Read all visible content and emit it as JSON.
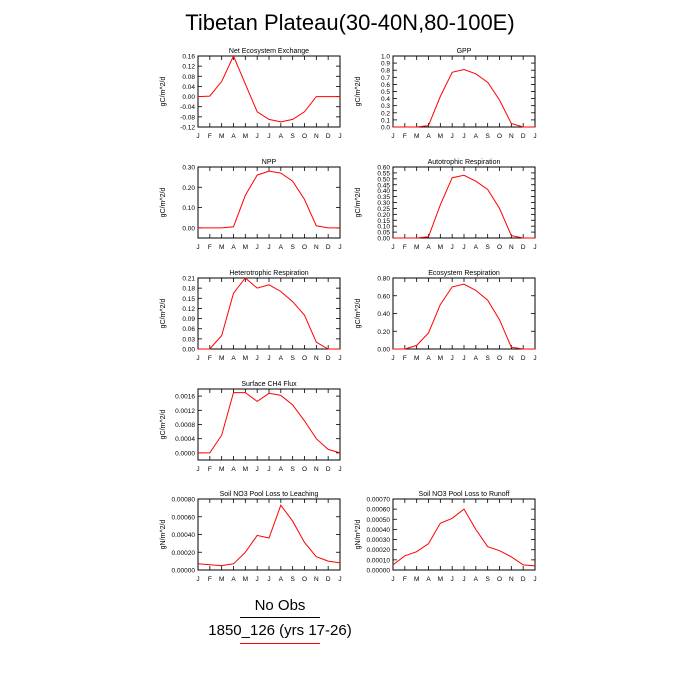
{
  "title": "Tibetan Plateau(30-40N,80-100E)",
  "legend": {
    "obs_label": "No Obs",
    "model_label": "1850_126 (yrs 17-26)",
    "model_color": "#ff0000",
    "obs_color": "#000000"
  },
  "chart_data": [
    {
      "type": "line",
      "title": "Net Ecosystem Exchange",
      "ylabel": "gC/m^2/d",
      "categories": [
        "J",
        "F",
        "M",
        "A",
        "M",
        "J",
        "J",
        "A",
        "S",
        "O",
        "N",
        "D",
        "J"
      ],
      "ylim": [
        -0.12,
        0.16
      ],
      "yticks": [
        "-0.12",
        "-0.08",
        "-0.04",
        "0.00",
        "0.04",
        "0.08",
        "0.12",
        "0.16"
      ],
      "series": [
        {
          "values": [
            0.0,
            0.002,
            0.06,
            0.16,
            0.05,
            -0.06,
            -0.09,
            -0.1,
            -0.09,
            -0.06,
            0.0,
            0.0,
            0.0
          ]
        }
      ]
    },
    {
      "type": "line",
      "title": "GPP",
      "ylabel": "gC/m^2/d",
      "categories": [
        "J",
        "F",
        "M",
        "A",
        "M",
        "J",
        "J",
        "A",
        "S",
        "O",
        "N",
        "D",
        "J"
      ],
      "ylim": [
        0,
        1.0
      ],
      "yticks": [
        "0.0",
        "0.1",
        "0.2",
        "0.3",
        "0.4",
        "0.5",
        "0.6",
        "0.7",
        "0.8",
        "0.9",
        "1.0"
      ],
      "series": [
        {
          "values": [
            0.0,
            0.0,
            0.0,
            0.02,
            0.43,
            0.77,
            0.81,
            0.75,
            0.63,
            0.38,
            0.05,
            0.0,
            0.0
          ]
        }
      ]
    },
    {
      "type": "line",
      "title": "NPP",
      "ylabel": "gC/m^2/d",
      "categories": [
        "J",
        "F",
        "M",
        "A",
        "M",
        "J",
        "J",
        "A",
        "S",
        "O",
        "N",
        "D",
        "J"
      ],
      "ylim": [
        -0.05,
        0.3
      ],
      "yticks": [
        "0.00",
        "0.10",
        "0.20",
        "0.30"
      ],
      "series": [
        {
          "values": [
            0.0,
            0.0,
            0.0,
            0.005,
            0.16,
            0.26,
            0.28,
            0.27,
            0.23,
            0.14,
            0.01,
            0.0,
            0.0
          ]
        }
      ]
    },
    {
      "type": "line",
      "title": "Autotrophic Respiration",
      "ylabel": "gC/m^2/d",
      "categories": [
        "J",
        "F",
        "M",
        "A",
        "M",
        "J",
        "J",
        "A",
        "S",
        "O",
        "N",
        "D",
        "J"
      ],
      "ylim": [
        0,
        0.6
      ],
      "yticks": [
        "0.00",
        "0.05",
        "0.10",
        "0.15",
        "0.20",
        "0.25",
        "0.30",
        "0.35",
        "0.40",
        "0.45",
        "0.50",
        "0.55",
        "0.60"
      ],
      "series": [
        {
          "values": [
            0.0,
            0.0,
            0.0,
            0.01,
            0.28,
            0.51,
            0.53,
            0.48,
            0.41,
            0.25,
            0.02,
            0.0,
            0.0
          ]
        }
      ]
    },
    {
      "type": "line",
      "title": "Heterotrophic Respiration",
      "ylabel": "gC/m^2/d",
      "categories": [
        "J",
        "F",
        "M",
        "A",
        "M",
        "J",
        "J",
        "A",
        "S",
        "O",
        "N",
        "D",
        "J"
      ],
      "ylim": [
        0,
        0.21
      ],
      "yticks": [
        "0.00",
        "0.03",
        "0.06",
        "0.09",
        "0.12",
        "0.15",
        "0.18",
        "0.21"
      ],
      "series": [
        {
          "values": [
            0.0,
            0.0,
            0.04,
            0.165,
            0.21,
            0.18,
            0.19,
            0.17,
            0.14,
            0.1,
            0.02,
            0.0,
            0.0
          ]
        }
      ]
    },
    {
      "type": "line",
      "title": "Ecosystem Respiration",
      "ylabel": "gC/m^2/d",
      "categories": [
        "J",
        "F",
        "M",
        "A",
        "M",
        "J",
        "J",
        "A",
        "S",
        "O",
        "N",
        "D",
        "J"
      ],
      "ylim": [
        0,
        0.8
      ],
      "yticks": [
        "0.00",
        "0.20",
        "0.40",
        "0.60",
        "0.80"
      ],
      "series": [
        {
          "values": [
            0.0,
            0.0,
            0.04,
            0.18,
            0.5,
            0.7,
            0.73,
            0.66,
            0.55,
            0.33,
            0.02,
            0.0,
            0.0
          ]
        }
      ]
    },
    {
      "type": "line",
      "title": "Surface CH4 Flux",
      "ylabel": "gC/m^2/d",
      "categories": [
        "J",
        "F",
        "M",
        "A",
        "M",
        "J",
        "J",
        "A",
        "S",
        "O",
        "N",
        "D",
        "J"
      ],
      "ylim": [
        -0.0002,
        0.0018
      ],
      "yticks": [
        "0.0000",
        "0.0004",
        "0.0008",
        "0.0012",
        "0.0016"
      ],
      "series": [
        {
          "values": [
            0.0,
            0.0,
            0.0005,
            0.0017,
            0.0017,
            0.00145,
            0.00168,
            0.00162,
            0.00135,
            0.0009,
            0.0004,
            0.0001,
            0.0
          ]
        }
      ]
    },
    {
      "type": "line",
      "title": "Soil NO3 Pool Loss to Leaching",
      "ylabel": "gN/m^2/d",
      "categories": [
        "J",
        "F",
        "M",
        "A",
        "M",
        "J",
        "J",
        "A",
        "S",
        "O",
        "N",
        "D",
        "J"
      ],
      "ylim": [
        0,
        0.0008
      ],
      "yticks": [
        "0.00000",
        "0.00020",
        "0.00040",
        "0.00060",
        "0.00080"
      ],
      "series": [
        {
          "values": [
            7e-05,
            6e-05,
            5e-05,
            7e-05,
            0.0002,
            0.00039,
            0.00036,
            0.00073,
            0.00055,
            0.00031,
            0.00015,
            0.0001,
            8e-05
          ]
        }
      ]
    },
    {
      "type": "line",
      "title": "Soil NO3 Pool Loss to Runoff",
      "ylabel": "gN/m^2/d",
      "categories": [
        "J",
        "F",
        "M",
        "A",
        "M",
        "J",
        "J",
        "A",
        "S",
        "O",
        "N",
        "D",
        "J"
      ],
      "ylim": [
        0,
        0.0007
      ],
      "yticks": [
        "0.00000",
        "0.00010",
        "0.00020",
        "0.00030",
        "0.00040",
        "0.00050",
        "0.00060",
        "0.00070"
      ],
      "series": [
        {
          "values": [
            5e-05,
            0.00014,
            0.00018,
            0.00026,
            0.00046,
            0.00051,
            0.0006,
            0.0004,
            0.00023,
            0.00019,
            0.00013,
            5e-05,
            4e-05
          ]
        }
      ]
    }
  ]
}
